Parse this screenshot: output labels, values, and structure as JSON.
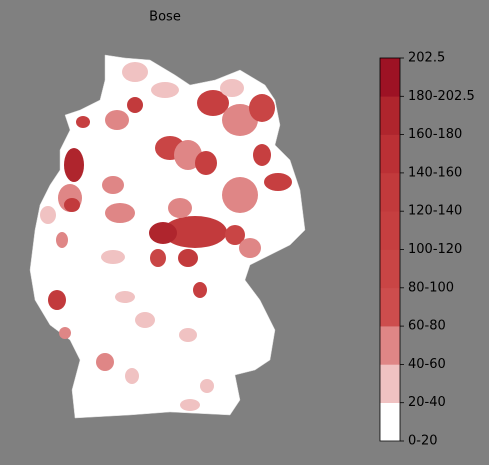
{
  "title": "Bose",
  "colorbar": {
    "ticks": [
      {
        "value": 0,
        "label": "0-20"
      },
      {
        "value": 20,
        "label": "20-40"
      },
      {
        "value": 40,
        "label": "40-60"
      },
      {
        "value": 60,
        "label": "60-80"
      },
      {
        "value": 80,
        "label": "80-100"
      },
      {
        "value": 100,
        "label": "100-120"
      },
      {
        "value": 120,
        "label": "120-140"
      },
      {
        "value": 140,
        "label": "140-160"
      },
      {
        "value": 160,
        "label": "160-180"
      },
      {
        "value": 180,
        "label": "180-202.5"
      },
      202.5
    ],
    "colors": [
      "#ffffff",
      "#f0c2c2",
      "#df8686",
      "#cd4d4d",
      "#c94545",
      "#c63f40",
      "#c23a3c",
      "#bb3035",
      "#af252d",
      "#9d1224"
    ]
  }
}
